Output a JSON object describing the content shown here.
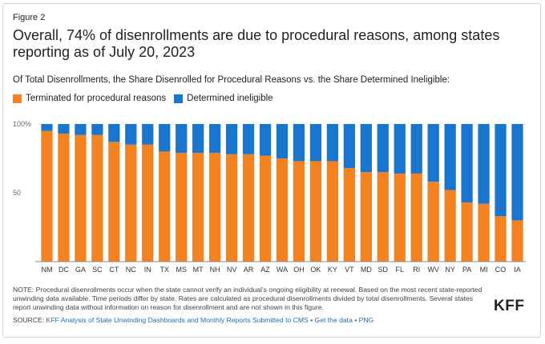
{
  "figure_label": "Figure 2",
  "title": "Overall, 74% of disenrollments are due to procedural reasons, among states reporting as of July 20, 2023",
  "subtitle": "Of Total Disenrollments, the Share Disenrolled for Procedural Reasons vs. the Share Determined Ineligible:",
  "colors": {
    "procedural": "#f58220",
    "ineligible": "#1a75cf"
  },
  "note": "NOTE: Procedural disenrollments occur when the state cannot verify an individual's ongoing eligibility at renewal. Based on the most recent state-reported unwinding data available. Time periods differ by state. Rates are calculated as procedural disenrollments divided by total disenrollments. Several states report unwinding data without information on reason for disenrollment and are not shown in this figure.",
  "source": {
    "prefix": "SOURCE: ",
    "link_text": "KFF Analysis of State Unwinding Dashboards and Monthly Reports Submitted to CMS",
    "sep1": " • ",
    "get_data": "Get the data",
    "sep2": " • ",
    "png": "PNG"
  },
  "logo": "KFF",
  "chart_data": {
    "type": "bar",
    "stacked": true,
    "categories": [
      "NM",
      "DC",
      "GA",
      "SC",
      "CT",
      "NC",
      "IN",
      "TX",
      "MS",
      "MT",
      "NH",
      "NV",
      "AR",
      "AZ",
      "WA",
      "OH",
      "OK",
      "KY",
      "VT",
      "MD",
      "SD",
      "FL",
      "RI",
      "WV",
      "NY",
      "PA",
      "MI",
      "CO",
      "IA"
    ],
    "series": [
      {
        "name": "Terminated for procedural reasons",
        "values": [
          95,
          93,
          92,
          92,
          87,
          85,
          85,
          80,
          79,
          79,
          79,
          78,
          78,
          77,
          75,
          73,
          73,
          73,
          68,
          65,
          65,
          64,
          64,
          58,
          52,
          43,
          42,
          33,
          30
        ]
      },
      {
        "name": "Determined ineligible",
        "values": [
          5,
          7,
          8,
          8,
          13,
          15,
          15,
          20,
          21,
          21,
          21,
          22,
          22,
          23,
          25,
          27,
          27,
          27,
          32,
          35,
          35,
          36,
          36,
          42,
          48,
          57,
          58,
          67,
          70
        ]
      }
    ],
    "ylim": [
      0,
      100
    ],
    "yticks": [
      {
        "value": 100,
        "label": "100%"
      },
      {
        "value": 50,
        "label": "50"
      }
    ],
    "grid": false,
    "legend": "top-left"
  }
}
